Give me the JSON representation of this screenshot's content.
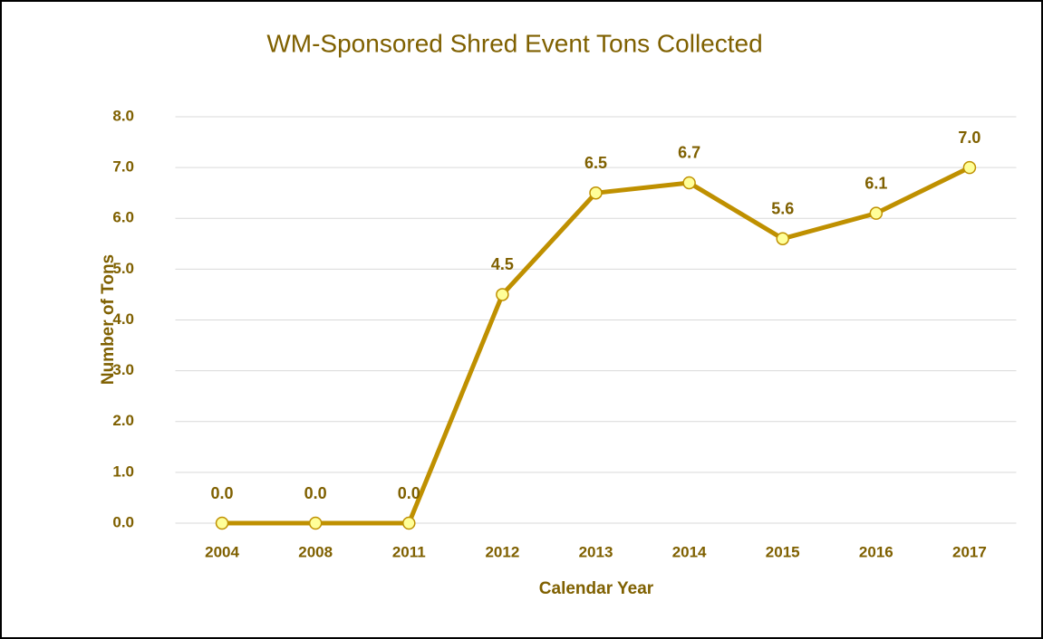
{
  "chart_data": {
    "type": "line",
    "title": "WM-Sponsored Shred Event Tons Collected",
    "x_label": "Calendar Year",
    "y_label": "Number of Tons",
    "categories": [
      "2004",
      "2008",
      "2011",
      "2012",
      "2013",
      "2014",
      "2015",
      "2016",
      "2017"
    ],
    "series": [
      {
        "name": "Tons",
        "color": "#bf9000",
        "values": [
          0,
          0,
          0,
          4.5,
          6.5,
          6.7,
          5.6,
          6.1,
          7.0
        ],
        "value_labels": [
          "0.0",
          "0.0",
          "0.0",
          "4.5",
          "6.5",
          "6.7",
          "5.6",
          "6.1",
          "7.0"
        ]
      }
    ],
    "ylim": [
      0,
      8
    ],
    "yticks": [
      {
        "value": 0,
        "label": "0.0"
      },
      {
        "value": 1,
        "label": "1.0"
      },
      {
        "value": 2,
        "label": "2.0"
      },
      {
        "value": 3,
        "label": "3.0"
      },
      {
        "value": 4,
        "label": "4.0"
      },
      {
        "value": 5,
        "label": "5.0"
      },
      {
        "value": 6,
        "label": "6.0"
      },
      {
        "value": 7,
        "label": "7.0"
      },
      {
        "value": 8,
        "label": "8.0"
      }
    ],
    "grid": true
  }
}
